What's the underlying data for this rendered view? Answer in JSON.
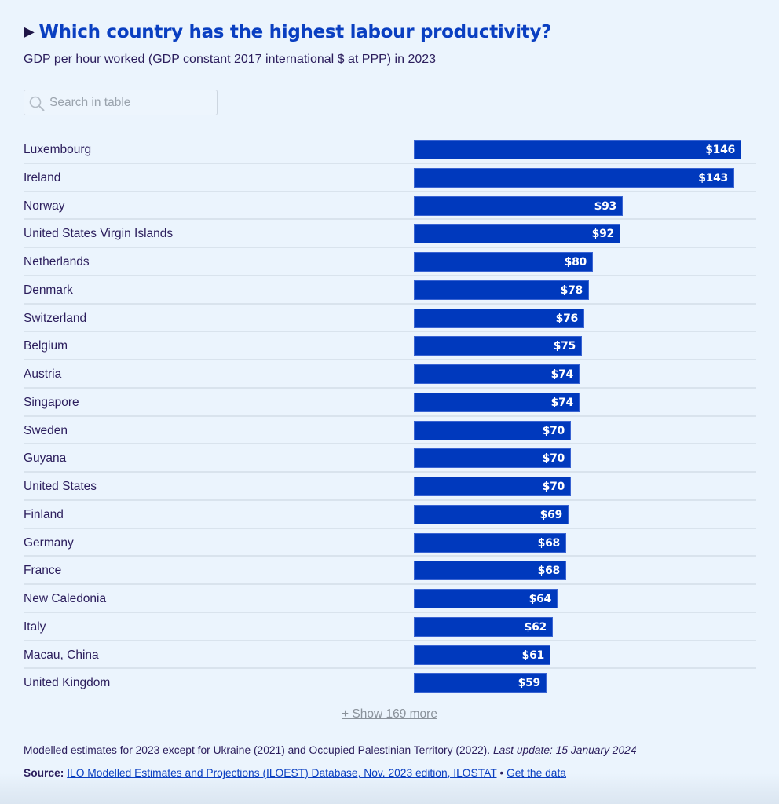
{
  "header": {
    "title": "Which country has the highest labour productivity?",
    "subtitle": "GDP per hour worked (GDP constant 2017 international $ at PPP) in 2023"
  },
  "search": {
    "placeholder": "Search in table",
    "icon": "search-icon"
  },
  "colors": {
    "bar": "#0039bd",
    "title": "#0a3fc1",
    "text": "#2b1d5c",
    "background": "#ebf4fd"
  },
  "chart_data": {
    "type": "bar",
    "orientation": "horizontal",
    "title": "Which country has the highest labour productivity?",
    "subtitle": "GDP per hour worked (GDP constant 2017 international $ at PPP) in 2023",
    "xlabel": "",
    "ylabel": "",
    "xlim": [
      0,
      146
    ],
    "grid": false,
    "categories": [
      "Luxembourg",
      "Ireland",
      "Norway",
      "United States Virgin Islands",
      "Netherlands",
      "Denmark",
      "Switzerland",
      "Belgium",
      "Austria",
      "Singapore",
      "Sweden",
      "Guyana",
      "United States",
      "Finland",
      "Germany",
      "France",
      "New Caledonia",
      "Italy",
      "Macau, China",
      "United Kingdom"
    ],
    "values": [
      146,
      143,
      93,
      92,
      80,
      78,
      76,
      75,
      74,
      74,
      70,
      70,
      70,
      69,
      68,
      68,
      64,
      62,
      61,
      59
    ],
    "labels": [
      "$146",
      "$143",
      "$93",
      "$92",
      "$80",
      "$78",
      "$76",
      "$75",
      "$74",
      "$74",
      "$70",
      "$70",
      "$70",
      "$69",
      "$68",
      "$68",
      "$64",
      "$62",
      "$61",
      "$59"
    ]
  },
  "show_more": "+ Show 169 more",
  "footer": {
    "note": "Modelled estimates for 2023 except for Ukraine (2021) and Occupied Palestinian Territory (2022).",
    "last_update": "Last update: 15 January 2024",
    "source_label": "Source:",
    "source_link": "ILO Modelled Estimates and Projections (ILOEST) Database, Nov. 2023 edition, ILOSTAT",
    "separator": "•",
    "get_data_link": "Get the data"
  }
}
